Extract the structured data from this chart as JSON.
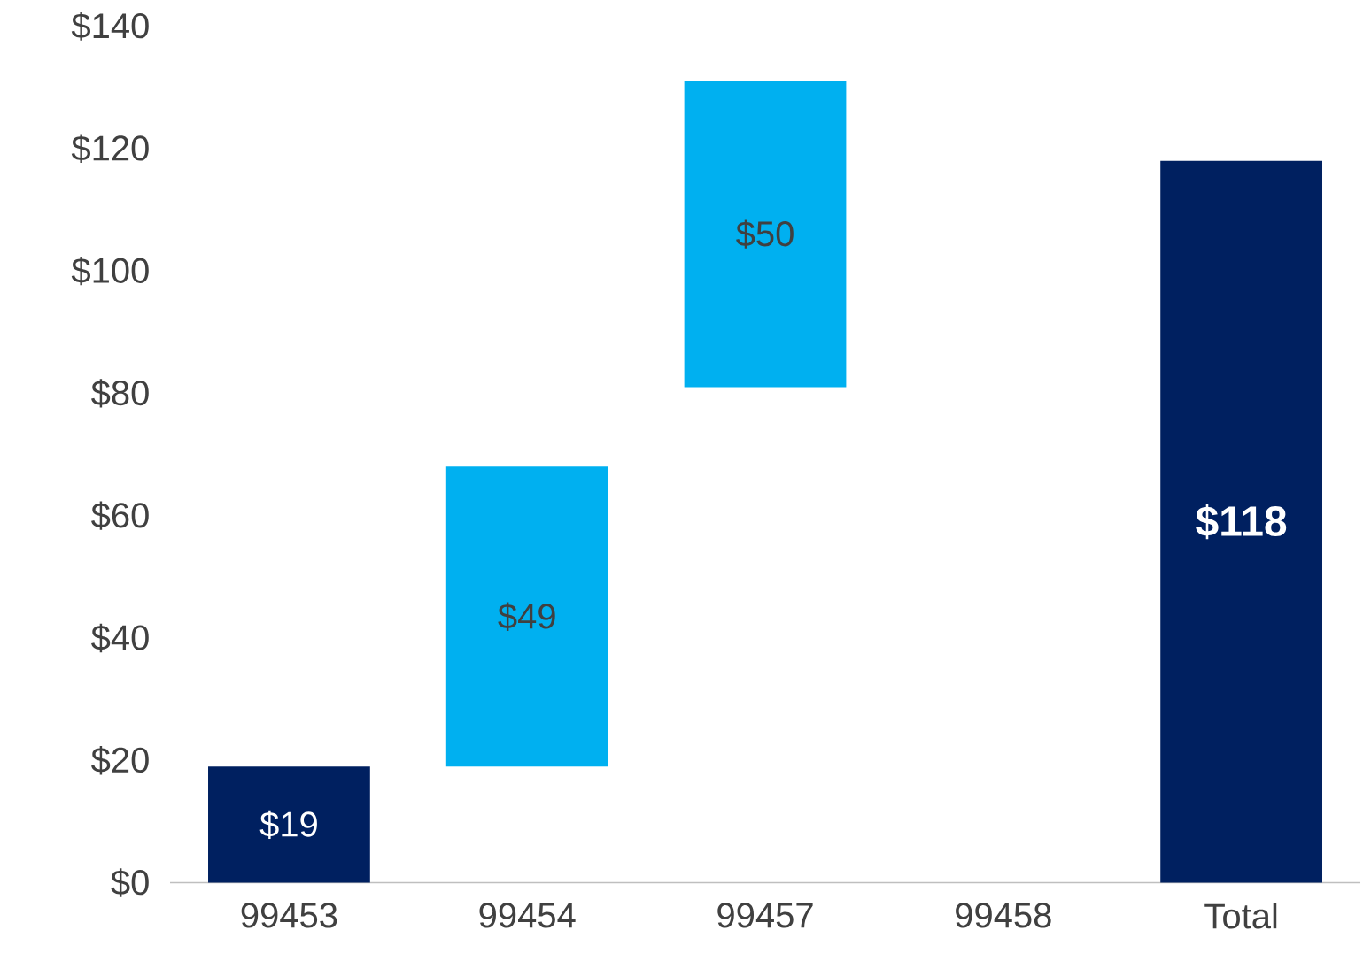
{
  "chart_data": {
    "type": "bar",
    "categories": [
      "99453",
      "99454",
      "99457",
      "99458",
      "Total"
    ],
    "values": [
      19,
      49,
      50,
      null,
      118
    ],
    "base": [
      0,
      19,
      81,
      null,
      0
    ],
    "colors": [
      "#002060",
      "#00b0f0",
      "#00b0f0",
      "#00b0f0",
      "#002060"
    ],
    "value_labels": [
      "$19",
      "$49",
      "$50",
      null,
      "$118"
    ],
    "ylim": [
      0,
      140
    ],
    "yticks": [
      {
        "value": 0,
        "label": "$0"
      },
      {
        "value": 20,
        "label": "$20"
      },
      {
        "value": 40,
        "label": "$40"
      },
      {
        "value": 60,
        "label": "$60"
      },
      {
        "value": 80,
        "label": "$80"
      },
      {
        "value": 100,
        "label": "$100"
      },
      {
        "value": 120,
        "label": "$120"
      },
      {
        "value": 140,
        "label": "$140"
      }
    ],
    "grid": false
  }
}
